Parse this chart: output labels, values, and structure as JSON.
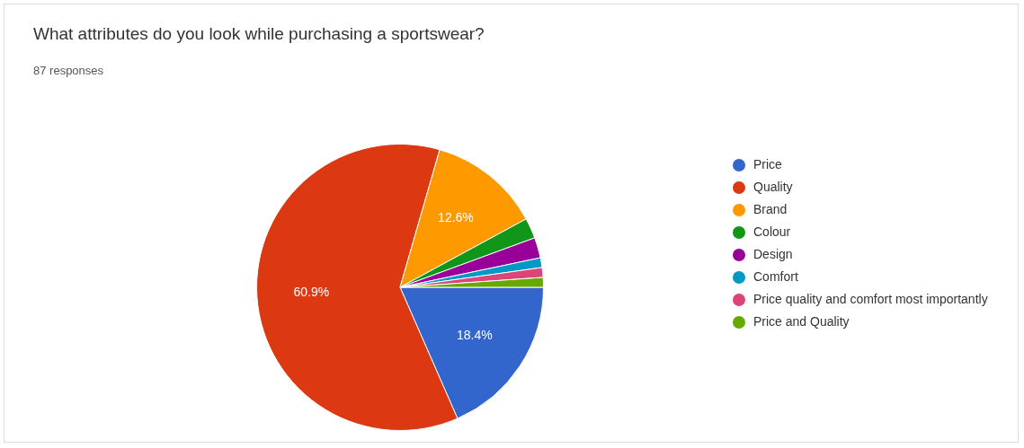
{
  "chart_data": {
    "type": "pie",
    "title": "What attributes do you look while purchasing a sportswear?",
    "subtitle": "87 responses",
    "categories": [
      "Price",
      "Quality",
      "Brand",
      "Colour",
      "Design",
      "Comfort",
      "Price quality and comfort most importantly",
      "Price and Quality"
    ],
    "values": [
      18.4,
      60.9,
      12.6,
      2.3,
      2.3,
      1.1,
      1.1,
      1.1
    ],
    "colors": [
      "#3366cc",
      "#dc3912",
      "#ff9900",
      "#109618",
      "#990099",
      "#0099c6",
      "#dd4477",
      "#66aa00"
    ],
    "value_labels": [
      "18.4%",
      "60.9%",
      "12.6%",
      null,
      null,
      null,
      null,
      null
    ],
    "legend": "right"
  }
}
